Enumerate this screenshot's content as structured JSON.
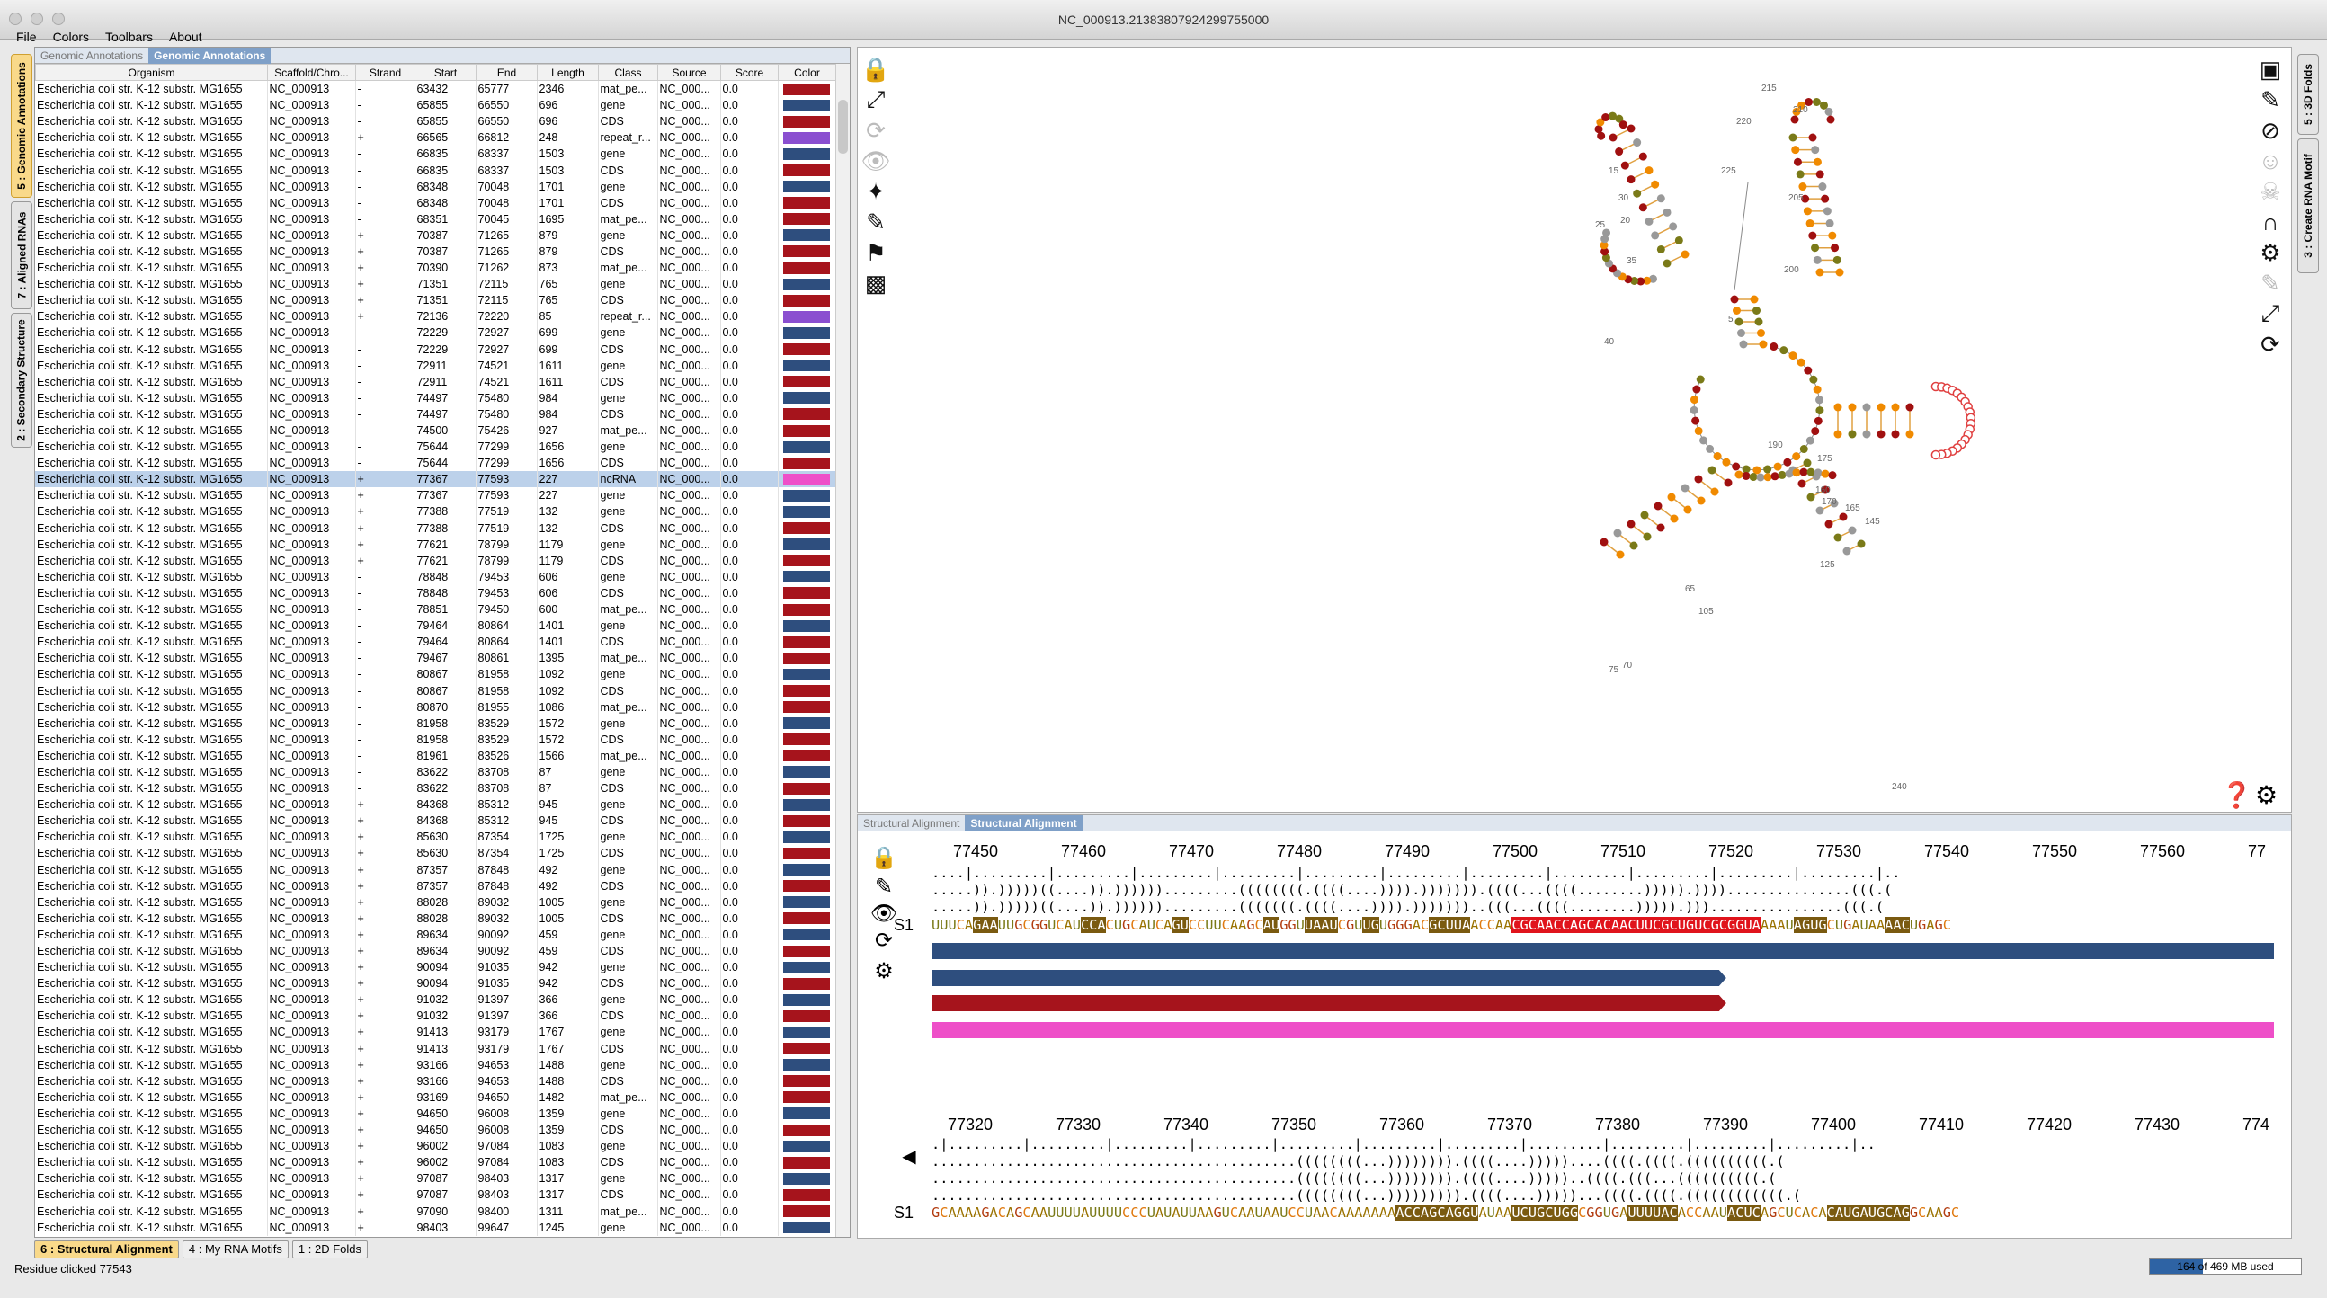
{
  "window_title": "NC_000913.21383807924299755000",
  "menu": [
    "File",
    "Colors",
    "Toolbars",
    "About"
  ],
  "left_tabs": [
    "5 : Genomic Annotations",
    "7 : Aligned RNAs",
    "2 : Secondary Structure"
  ],
  "right_tabs": [
    "5 : 3D Folds",
    "3 : Create RNA Motif"
  ],
  "ann_panel": {
    "tab_inactive": "Genomic Annotations",
    "tab_active": "Genomic Annotations"
  },
  "columns": [
    "Organism",
    "Scaffold/Chro...",
    "Strand",
    "Start",
    "End",
    "Length",
    "Class",
    "Source",
    "Score",
    "Color"
  ],
  "colors": {
    "gene": "#2e4e7e",
    "CDS": "#a6141c",
    "mat_pe": "#a6141c",
    "repeat": "#8a4fd0",
    "ncRNA": "#ee4fc8"
  },
  "rows": [
    [
      "Escherichia coli str. K-12 substr. MG1655",
      "NC_000913",
      "-",
      "63432",
      "65777",
      "2346",
      "mat_pe...",
      "NC_000...",
      "0.0",
      "CDS"
    ],
    [
      "Escherichia coli str. K-12 substr. MG1655",
      "NC_000913",
      "-",
      "65855",
      "66550",
      "696",
      "gene",
      "NC_000...",
      "0.0",
      "gene"
    ],
    [
      "Escherichia coli str. K-12 substr. MG1655",
      "NC_000913",
      "-",
      "65855",
      "66550",
      "696",
      "CDS",
      "NC_000...",
      "0.0",
      "CDS"
    ],
    [
      "Escherichia coli str. K-12 substr. MG1655",
      "NC_000913",
      "+",
      "66565",
      "66812",
      "248",
      "repeat_r...",
      "NC_000...",
      "0.0",
      "repeat"
    ],
    [
      "Escherichia coli str. K-12 substr. MG1655",
      "NC_000913",
      "-",
      "66835",
      "68337",
      "1503",
      "gene",
      "NC_000...",
      "0.0",
      "gene"
    ],
    [
      "Escherichia coli str. K-12 substr. MG1655",
      "NC_000913",
      "-",
      "66835",
      "68337",
      "1503",
      "CDS",
      "NC_000...",
      "0.0",
      "CDS"
    ],
    [
      "Escherichia coli str. K-12 substr. MG1655",
      "NC_000913",
      "-",
      "68348",
      "70048",
      "1701",
      "gene",
      "NC_000...",
      "0.0",
      "gene"
    ],
    [
      "Escherichia coli str. K-12 substr. MG1655",
      "NC_000913",
      "-",
      "68348",
      "70048",
      "1701",
      "CDS",
      "NC_000...",
      "0.0",
      "CDS"
    ],
    [
      "Escherichia coli str. K-12 substr. MG1655",
      "NC_000913",
      "-",
      "68351",
      "70045",
      "1695",
      "mat_pe...",
      "NC_000...",
      "0.0",
      "CDS"
    ],
    [
      "Escherichia coli str. K-12 substr. MG1655",
      "NC_000913",
      "+",
      "70387",
      "71265",
      "879",
      "gene",
      "NC_000...",
      "0.0",
      "gene"
    ],
    [
      "Escherichia coli str. K-12 substr. MG1655",
      "NC_000913",
      "+",
      "70387",
      "71265",
      "879",
      "CDS",
      "NC_000...",
      "0.0",
      "CDS"
    ],
    [
      "Escherichia coli str. K-12 substr. MG1655",
      "NC_000913",
      "+",
      "70390",
      "71262",
      "873",
      "mat_pe...",
      "NC_000...",
      "0.0",
      "CDS"
    ],
    [
      "Escherichia coli str. K-12 substr. MG1655",
      "NC_000913",
      "+",
      "71351",
      "72115",
      "765",
      "gene",
      "NC_000...",
      "0.0",
      "gene"
    ],
    [
      "Escherichia coli str. K-12 substr. MG1655",
      "NC_000913",
      "+",
      "71351",
      "72115",
      "765",
      "CDS",
      "NC_000...",
      "0.0",
      "CDS"
    ],
    [
      "Escherichia coli str. K-12 substr. MG1655",
      "NC_000913",
      "+",
      "72136",
      "72220",
      "85",
      "repeat_r...",
      "NC_000...",
      "0.0",
      "repeat"
    ],
    [
      "Escherichia coli str. K-12 substr. MG1655",
      "NC_000913",
      "-",
      "72229",
      "72927",
      "699",
      "gene",
      "NC_000...",
      "0.0",
      "gene"
    ],
    [
      "Escherichia coli str. K-12 substr. MG1655",
      "NC_000913",
      "-",
      "72229",
      "72927",
      "699",
      "CDS",
      "NC_000...",
      "0.0",
      "CDS"
    ],
    [
      "Escherichia coli str. K-12 substr. MG1655",
      "NC_000913",
      "-",
      "72911",
      "74521",
      "1611",
      "gene",
      "NC_000...",
      "0.0",
      "gene"
    ],
    [
      "Escherichia coli str. K-12 substr. MG1655",
      "NC_000913",
      "-",
      "72911",
      "74521",
      "1611",
      "CDS",
      "NC_000...",
      "0.0",
      "CDS"
    ],
    [
      "Escherichia coli str. K-12 substr. MG1655",
      "NC_000913",
      "-",
      "74497",
      "75480",
      "984",
      "gene",
      "NC_000...",
      "0.0",
      "gene"
    ],
    [
      "Escherichia coli str. K-12 substr. MG1655",
      "NC_000913",
      "-",
      "74497",
      "75480",
      "984",
      "CDS",
      "NC_000...",
      "0.0",
      "CDS"
    ],
    [
      "Escherichia coli str. K-12 substr. MG1655",
      "NC_000913",
      "-",
      "74500",
      "75426",
      "927",
      "mat_pe...",
      "NC_000...",
      "0.0",
      "CDS"
    ],
    [
      "Escherichia coli str. K-12 substr. MG1655",
      "NC_000913",
      "-",
      "75644",
      "77299",
      "1656",
      "gene",
      "NC_000...",
      "0.0",
      "gene"
    ],
    [
      "Escherichia coli str. K-12 substr. MG1655",
      "NC_000913",
      "-",
      "75644",
      "77299",
      "1656",
      "CDS",
      "NC_000...",
      "0.0",
      "CDS"
    ],
    [
      "Escherichia coli str. K-12 substr. MG1655",
      "NC_000913",
      "+",
      "77367",
      "77593",
      "227",
      "ncRNA",
      "NC_000...",
      "0.0",
      "ncRNA"
    ],
    [
      "Escherichia coli str. K-12 substr. MG1655",
      "NC_000913",
      "+",
      "77367",
      "77593",
      "227",
      "gene",
      "NC_000...",
      "0.0",
      "gene"
    ],
    [
      "Escherichia coli str. K-12 substr. MG1655",
      "NC_000913",
      "+",
      "77388",
      "77519",
      "132",
      "gene",
      "NC_000...",
      "0.0",
      "gene"
    ],
    [
      "Escherichia coli str. K-12 substr. MG1655",
      "NC_000913",
      "+",
      "77388",
      "77519",
      "132",
      "CDS",
      "NC_000...",
      "0.0",
      "CDS"
    ],
    [
      "Escherichia coli str. K-12 substr. MG1655",
      "NC_000913",
      "+",
      "77621",
      "78799",
      "1179",
      "gene",
      "NC_000...",
      "0.0",
      "gene"
    ],
    [
      "Escherichia coli str. K-12 substr. MG1655",
      "NC_000913",
      "+",
      "77621",
      "78799",
      "1179",
      "CDS",
      "NC_000...",
      "0.0",
      "CDS"
    ],
    [
      "Escherichia coli str. K-12 substr. MG1655",
      "NC_000913",
      "-",
      "78848",
      "79453",
      "606",
      "gene",
      "NC_000...",
      "0.0",
      "gene"
    ],
    [
      "Escherichia coli str. K-12 substr. MG1655",
      "NC_000913",
      "-",
      "78848",
      "79453",
      "606",
      "CDS",
      "NC_000...",
      "0.0",
      "CDS"
    ],
    [
      "Escherichia coli str. K-12 substr. MG1655",
      "NC_000913",
      "-",
      "78851",
      "79450",
      "600",
      "mat_pe...",
      "NC_000...",
      "0.0",
      "CDS"
    ],
    [
      "Escherichia coli str. K-12 substr. MG1655",
      "NC_000913",
      "-",
      "79464",
      "80864",
      "1401",
      "gene",
      "NC_000...",
      "0.0",
      "gene"
    ],
    [
      "Escherichia coli str. K-12 substr. MG1655",
      "NC_000913",
      "-",
      "79464",
      "80864",
      "1401",
      "CDS",
      "NC_000...",
      "0.0",
      "CDS"
    ],
    [
      "Escherichia coli str. K-12 substr. MG1655",
      "NC_000913",
      "-",
      "79467",
      "80861",
      "1395",
      "mat_pe...",
      "NC_000...",
      "0.0",
      "CDS"
    ],
    [
      "Escherichia coli str. K-12 substr. MG1655",
      "NC_000913",
      "-",
      "80867",
      "81958",
      "1092",
      "gene",
      "NC_000...",
      "0.0",
      "gene"
    ],
    [
      "Escherichia coli str. K-12 substr. MG1655",
      "NC_000913",
      "-",
      "80867",
      "81958",
      "1092",
      "CDS",
      "NC_000...",
      "0.0",
      "CDS"
    ],
    [
      "Escherichia coli str. K-12 substr. MG1655",
      "NC_000913",
      "-",
      "80870",
      "81955",
      "1086",
      "mat_pe...",
      "NC_000...",
      "0.0",
      "CDS"
    ],
    [
      "Escherichia coli str. K-12 substr. MG1655",
      "NC_000913",
      "-",
      "81958",
      "83529",
      "1572",
      "gene",
      "NC_000...",
      "0.0",
      "gene"
    ],
    [
      "Escherichia coli str. K-12 substr. MG1655",
      "NC_000913",
      "-",
      "81958",
      "83529",
      "1572",
      "CDS",
      "NC_000...",
      "0.0",
      "CDS"
    ],
    [
      "Escherichia coli str. K-12 substr. MG1655",
      "NC_000913",
      "-",
      "81961",
      "83526",
      "1566",
      "mat_pe...",
      "NC_000...",
      "0.0",
      "CDS"
    ],
    [
      "Escherichia coli str. K-12 substr. MG1655",
      "NC_000913",
      "-",
      "83622",
      "83708",
      "87",
      "gene",
      "NC_000...",
      "0.0",
      "gene"
    ],
    [
      "Escherichia coli str. K-12 substr. MG1655",
      "NC_000913",
      "-",
      "83622",
      "83708",
      "87",
      "CDS",
      "NC_000...",
      "0.0",
      "CDS"
    ],
    [
      "Escherichia coli str. K-12 substr. MG1655",
      "NC_000913",
      "+",
      "84368",
      "85312",
      "945",
      "gene",
      "NC_000...",
      "0.0",
      "gene"
    ],
    [
      "Escherichia coli str. K-12 substr. MG1655",
      "NC_000913",
      "+",
      "84368",
      "85312",
      "945",
      "CDS",
      "NC_000...",
      "0.0",
      "CDS"
    ],
    [
      "Escherichia coli str. K-12 substr. MG1655",
      "NC_000913",
      "+",
      "85630",
      "87354",
      "1725",
      "gene",
      "NC_000...",
      "0.0",
      "gene"
    ],
    [
      "Escherichia coli str. K-12 substr. MG1655",
      "NC_000913",
      "+",
      "85630",
      "87354",
      "1725",
      "CDS",
      "NC_000...",
      "0.0",
      "CDS"
    ],
    [
      "Escherichia coli str. K-12 substr. MG1655",
      "NC_000913",
      "+",
      "87357",
      "87848",
      "492",
      "gene",
      "NC_000...",
      "0.0",
      "gene"
    ],
    [
      "Escherichia coli str. K-12 substr. MG1655",
      "NC_000913",
      "+",
      "87357",
      "87848",
      "492",
      "CDS",
      "NC_000...",
      "0.0",
      "CDS"
    ],
    [
      "Escherichia coli str. K-12 substr. MG1655",
      "NC_000913",
      "+",
      "88028",
      "89032",
      "1005",
      "gene",
      "NC_000...",
      "0.0",
      "gene"
    ],
    [
      "Escherichia coli str. K-12 substr. MG1655",
      "NC_000913",
      "+",
      "88028",
      "89032",
      "1005",
      "CDS",
      "NC_000...",
      "0.0",
      "CDS"
    ],
    [
      "Escherichia coli str. K-12 substr. MG1655",
      "NC_000913",
      "+",
      "89634",
      "90092",
      "459",
      "gene",
      "NC_000...",
      "0.0",
      "gene"
    ],
    [
      "Escherichia coli str. K-12 substr. MG1655",
      "NC_000913",
      "+",
      "89634",
      "90092",
      "459",
      "CDS",
      "NC_000...",
      "0.0",
      "CDS"
    ],
    [
      "Escherichia coli str. K-12 substr. MG1655",
      "NC_000913",
      "+",
      "90094",
      "91035",
      "942",
      "gene",
      "NC_000...",
      "0.0",
      "gene"
    ],
    [
      "Escherichia coli str. K-12 substr. MG1655",
      "NC_000913",
      "+",
      "90094",
      "91035",
      "942",
      "CDS",
      "NC_000...",
      "0.0",
      "CDS"
    ],
    [
      "Escherichia coli str. K-12 substr. MG1655",
      "NC_000913",
      "+",
      "91032",
      "91397",
      "366",
      "gene",
      "NC_000...",
      "0.0",
      "gene"
    ],
    [
      "Escherichia coli str. K-12 substr. MG1655",
      "NC_000913",
      "+",
      "91032",
      "91397",
      "366",
      "CDS",
      "NC_000...",
      "0.0",
      "CDS"
    ],
    [
      "Escherichia coli str. K-12 substr. MG1655",
      "NC_000913",
      "+",
      "91413",
      "93179",
      "1767",
      "gene",
      "NC_000...",
      "0.0",
      "gene"
    ],
    [
      "Escherichia coli str. K-12 substr. MG1655",
      "NC_000913",
      "+",
      "91413",
      "93179",
      "1767",
      "CDS",
      "NC_000...",
      "0.0",
      "CDS"
    ],
    [
      "Escherichia coli str. K-12 substr. MG1655",
      "NC_000913",
      "+",
      "93166",
      "94653",
      "1488",
      "gene",
      "NC_000...",
      "0.0",
      "gene"
    ],
    [
      "Escherichia coli str. K-12 substr. MG1655",
      "NC_000913",
      "+",
      "93166",
      "94653",
      "1488",
      "CDS",
      "NC_000...",
      "0.0",
      "CDS"
    ],
    [
      "Escherichia coli str. K-12 substr. MG1655",
      "NC_000913",
      "+",
      "93169",
      "94650",
      "1482",
      "mat_pe...",
      "NC_000...",
      "0.0",
      "CDS"
    ],
    [
      "Escherichia coli str. K-12 substr. MG1655",
      "NC_000913",
      "+",
      "94650",
      "96008",
      "1359",
      "gene",
      "NC_000...",
      "0.0",
      "gene"
    ],
    [
      "Escherichia coli str. K-12 substr. MG1655",
      "NC_000913",
      "+",
      "94650",
      "96008",
      "1359",
      "CDS",
      "NC_000...",
      "0.0",
      "CDS"
    ],
    [
      "Escherichia coli str. K-12 substr. MG1655",
      "NC_000913",
      "+",
      "96002",
      "97084",
      "1083",
      "gene",
      "NC_000...",
      "0.0",
      "gene"
    ],
    [
      "Escherichia coli str. K-12 substr. MG1655",
      "NC_000913",
      "+",
      "96002",
      "97084",
      "1083",
      "CDS",
      "NC_000...",
      "0.0",
      "CDS"
    ],
    [
      "Escherichia coli str. K-12 substr. MG1655",
      "NC_000913",
      "+",
      "97087",
      "98403",
      "1317",
      "gene",
      "NC_000...",
      "0.0",
      "gene"
    ],
    [
      "Escherichia coli str. K-12 substr. MG1655",
      "NC_000913",
      "+",
      "97087",
      "98403",
      "1317",
      "CDS",
      "NC_000...",
      "0.0",
      "CDS"
    ],
    [
      "Escherichia coli str. K-12 substr. MG1655",
      "NC_000913",
      "+",
      "97090",
      "98400",
      "1311",
      "mat_pe...",
      "NC_000...",
      "0.0",
      "CDS"
    ],
    [
      "Escherichia coli str. K-12 substr. MG1655",
      "NC_000913",
      "+",
      "98403",
      "99647",
      "1245",
      "gene",
      "NC_000...",
      "0.0",
      "gene"
    ]
  ],
  "selected_row": 24,
  "struct_panel": {
    "tab_inactive": "Structural Alignment",
    "tab_active": "Structural Alignment"
  },
  "block1": {
    "ticks": [
      "77450",
      "77460",
      "77470",
      "77480",
      "77490",
      "77500",
      "77510",
      "77520",
      "77530",
      "77540",
      "77550",
      "77560",
      "77"
    ],
    "ruler": "....|.........|.........|.........|.........|.........|.........|.........|.........|.........|.........|.........|..",
    "struct1": ".....)).)))))((....)).)))))).........((((((((.((((....)))).))))))).((((...((((........))))).))))...............(((.(",
    "struct2": ".....)).)))))((....)).)))))).........(((((((.((((....)))).)))))))..(((...((((........))))).)))................(((.(",
    "label": "S1",
    "seq": "UUUCAGAAUUGCGGUCAUCCACUGCAUCAGUCCUUCAAGCAUGGUUAAUCGUUGUGGGACGCUUAACCAACGCAACCAGCACAACUUCGCUGUCGCGGUAAAAUAGUGCUGAUAAAACUGAGC",
    "bar_colors": [
      "#2e4e7e",
      "#2e4e7e",
      "#a6141c",
      "#ee4fc8"
    ],
    "bar_fracs": [
      1.0,
      0.592,
      0.592,
      1.0
    ]
  },
  "block2": {
    "ticks": [
      "77320",
      "77330",
      "77340",
      "77350",
      "77360",
      "77370",
      "77380",
      "77390",
      "77400",
      "77410",
      "77420",
      "77430",
      "774"
    ],
    "ruler": ".|.........|.........|.........|.........|.........|.........|.........|.........|.........|.........|.........|..",
    "struct1": "............................................((((((((...)))))))).((((....)))))....((((.((((.((((((((((.(",
    "struct2": "............................................((((((((...)))))))).((((....)))))..((((.(((...((((((((((.(",
    "struct3": "............................................((((((((...))))))))).((((....)))))...((((.((((.((((((((((((.(",
    "label": "S1",
    "seq": "GCAAAAGACAGCAAUUUUAUUUUCCCUAUAUUAAGUCAAUAAUCCUAACAAAAAAAACCAGCAGGUAUAAUCUGCUGGCGGUGAUUUUACACCAAUACUCAGCUCACACAUGAUGCAGGCAAGC"
  },
  "status": "Residue clicked 77543",
  "memory": "164 of 469 MB used",
  "bottom_tabs": [
    "6 : Structural Alignment",
    "4 : My RNA Motifs",
    "1 : 2D Folds"
  ],
  "struct_labels": [
    "215",
    "210",
    "205",
    "200",
    "225",
    "220",
    "20",
    "15",
    "25",
    "30",
    "35",
    "40",
    "5'",
    "190",
    "175",
    "170",
    "160",
    "165",
    "145",
    "125",
    "105",
    "65",
    "70",
    "75",
    "240"
  ]
}
